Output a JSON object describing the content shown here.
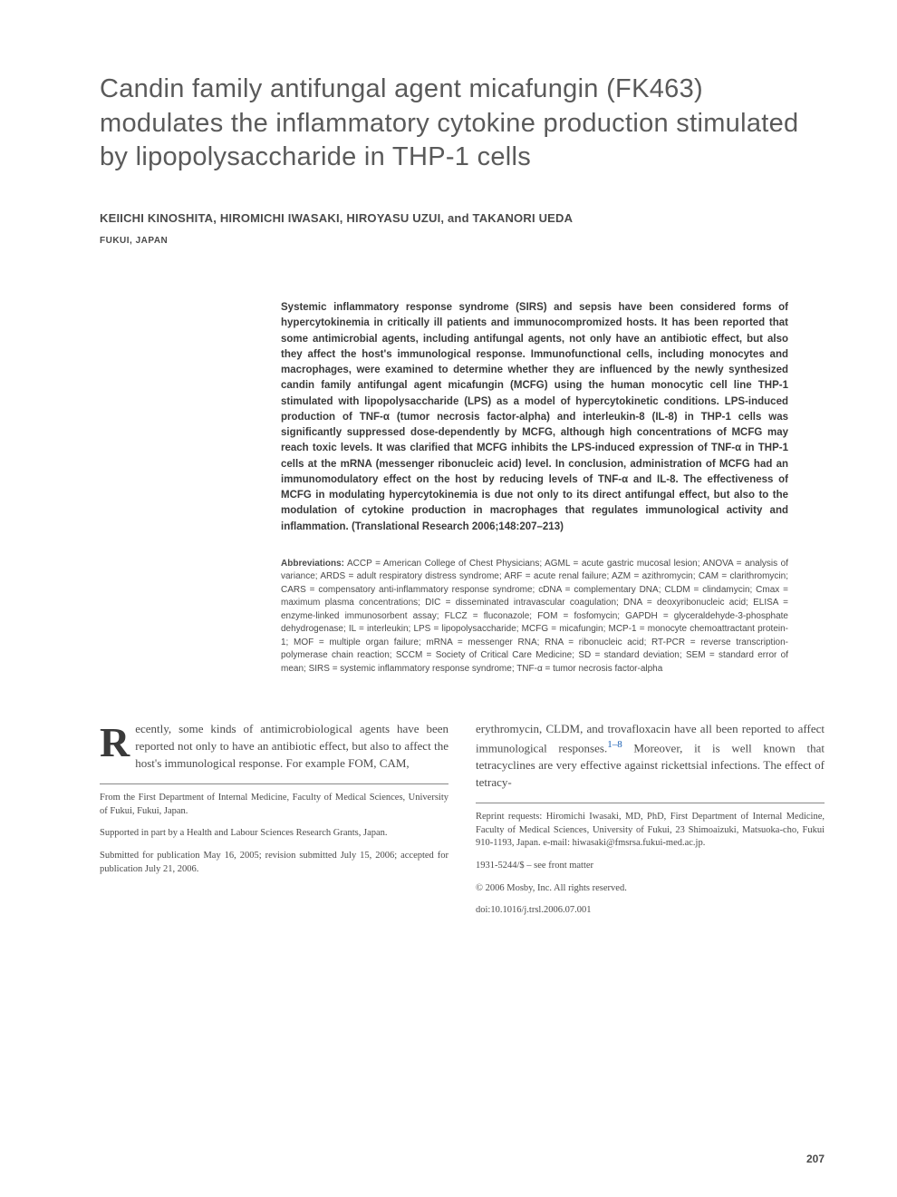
{
  "title": "Candin family antifungal agent micafungin (FK463) modulates the inflammatory cytokine production stimulated by lipopolysaccharide in THP-1 cells",
  "authors": "KEIICHI KINOSHITA, HIROMICHI IWASAKI, HIROYASU UZUI, and TAKANORI UEDA",
  "location": "FUKUI, JAPAN",
  "abstract": "Systemic inflammatory response syndrome (SIRS) and sepsis have been considered forms of hypercytokinemia in critically ill patients and immunocompromized hosts. It has been reported that some antimicrobial agents, including antifungal agents, not only have an antibiotic effect, but also they affect the host's immunological response. Immunofunctional cells, including monocytes and macrophages, were examined to determine whether they are influenced by the newly synthesized candin family antifungal agent micafungin (MCFG) using the human monocytic cell line THP-1 stimulated with lipopolysaccharide (LPS) as a model of hypercytokinetic conditions. LPS-induced production of TNF-α (tumor necrosis factor-alpha) and interleukin-8 (IL-8) in THP-1 cells was significantly suppressed dose-dependently by MCFG, although high concentrations of MCFG may reach toxic levels. It was clarified that MCFG inhibits the LPS-induced expression of TNF-α in THP-1 cells at the mRNA (messenger ribonucleic acid) level. In conclusion, administration of MCFG had an immunomodulatory effect on the host by reducing levels of TNF-α and IL-8. The effectiveness of MCFG in modulating hypercytokinemia is due not only to its direct antifungal effect, but also to the modulation of cytokine production in macrophages that regulates immunological activity and inflammation. (Translational Research 2006;148:207–213)",
  "abbreviations_label": "Abbreviations:",
  "abbreviations": " ACCP = American College of Chest Physicians; AGML = acute gastric mucosal lesion; ANOVA = analysis of variance; ARDS = adult respiratory distress syndrome; ARF = acute renal failure; AZM = azithromycin; CAM = clarithromycin; CARS = compensatory anti-inflammatory response syndrome; cDNA = complementary DNA; CLDM = clindamycin; Cmax = maximum plasma concentrations; DIC = disseminated intravascular coagulation; DNA = deoxyribonucleic acid; ELISA = enzyme-linked immunosorbent assay; FLCZ = fluconazole; FOM = fosfomycin; GAPDH = glyceraldehyde-3-phosphate dehydrogenase; IL = interleukin; LPS = lipopolysaccharide; MCFG = micafungin; MCP-1 = monocyte chemoattractant protein-1; MOF = multiple organ failure; mRNA = messenger RNA; RNA = ribonucleic acid; RT-PCR = reverse transcription-polymerase chain reaction; SCCM = Society of Critical Care Medicine; SD = standard deviation; SEM = standard error of mean; SIRS = systemic inflammatory response syndrome; TNF-α = tumor necrosis factor-alpha",
  "body": {
    "dropcap": "R",
    "col1_para": "ecently, some kinds of antimicrobiological agents have been reported not only to have an antibiotic effect, but also to affect the host's immunological response. For example FOM, CAM,",
    "col2_para_a": "erythromycin, CLDM, and trovafloxacin have all been reported to affect immunological responses.",
    "col2_ref": "1–8",
    "col2_para_b": " Moreover, it is well known that tetracyclines are very effective against rickettsial infections. The effect of tetracy-"
  },
  "footnotes": {
    "left": [
      "From the First Department of Internal Medicine, Faculty of Medical Sciences, University of Fukui, Fukui, Japan.",
      "Supported in part by a Health and Labour Sciences Research Grants, Japan.",
      "Submitted for publication May 16, 2005; revision submitted July 15, 2006; accepted for publication July 21, 2006."
    ],
    "right": [
      "Reprint requests: Hiromichi Iwasaki, MD, PhD, First Department of Internal Medicine, Faculty of Medical Sciences, University of Fukui, 23 Shimoaizuki, Matsuoka-cho, Fukui 910-1193, Japan. e-mail: hiwasaki@fmsrsa.fukui-med.ac.jp.",
      "1931-5244/$ – see front matter",
      "© 2006 Mosby, Inc. All rights reserved.",
      "doi:10.1016/j.trsl.2006.07.001"
    ]
  },
  "page_number": "207",
  "styling": {
    "page_bg": "#ffffff",
    "title_color": "#5a5a5a",
    "text_color": "#4a4a4a",
    "link_color": "#1a5fb4",
    "title_fontsize": 29,
    "authors_fontsize": 13,
    "abstract_fontsize": 11.5,
    "abbrev_fontsize": 10,
    "body_fontsize": 13,
    "footnote_fontsize": 10.5,
    "dropcap_fontsize": 46
  }
}
